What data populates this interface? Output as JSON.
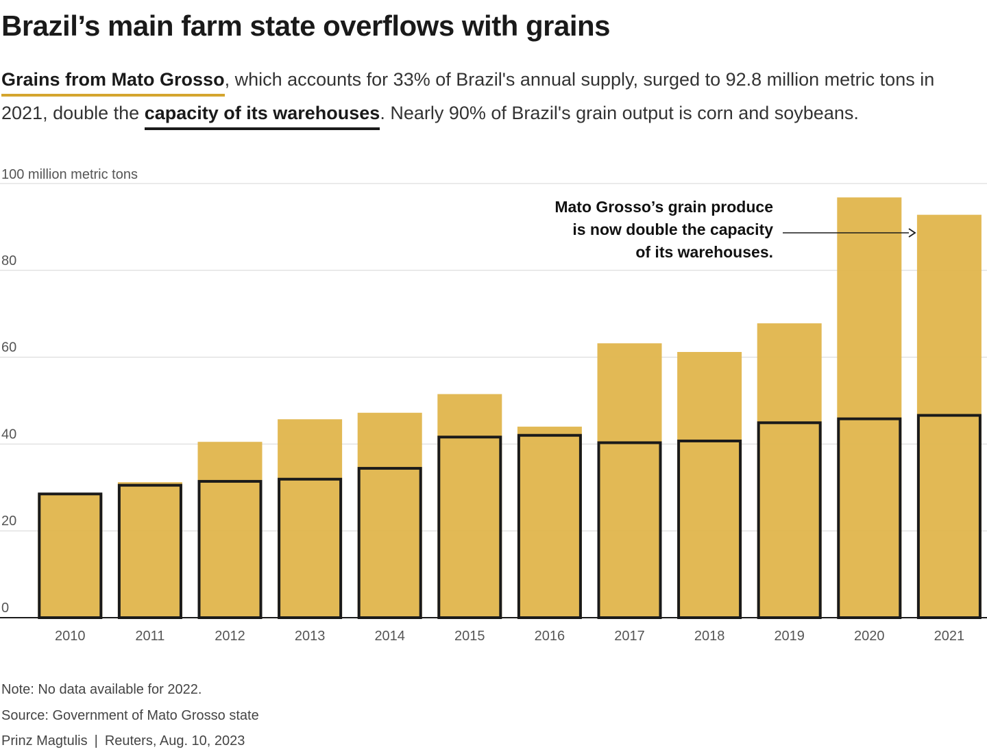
{
  "title": "Brazil’s main farm state overflows with grains",
  "subtitle": {
    "link1": "Grains from Mato Grosso",
    "text1": ", which accounts for 33% of Brazil's annual supply, surged to 92.8 million metric tons in 2021, double the ",
    "link2": "capacity of its warehouses",
    "text2": ". Nearly 90% of Brazil's grain output is corn and soybeans."
  },
  "colors": {
    "production": "#e0b54c",
    "capacity_outline": "#1a1a1a",
    "gridline": "#d6d6d6",
    "highlight_gold": "#d4a52e"
  },
  "chart_data": {
    "type": "bar",
    "title": "Brazil’s main farm state overflows with grains",
    "ylabel": "100 million metric tons",
    "xlabel": "",
    "ylim": [
      0,
      100
    ],
    "yticks": [
      0,
      20,
      40,
      60,
      80
    ],
    "categories": [
      "2010",
      "2011",
      "2012",
      "2013",
      "2014",
      "2015",
      "2016",
      "2017",
      "2018",
      "2019",
      "2020",
      "2021"
    ],
    "series": [
      {
        "name": "Grain production",
        "style": "filled",
        "values": [
          28.5,
          31.2,
          40.5,
          45.7,
          47.2,
          51.5,
          44.0,
          63.2,
          61.2,
          67.8,
          96.8,
          92.8
        ]
      },
      {
        "name": "Warehouse capacity",
        "style": "outline",
        "values": [
          28.5,
          30.5,
          31.4,
          31.9,
          34.4,
          41.6,
          42.0,
          40.3,
          40.7,
          44.9,
          45.8,
          46.6
        ]
      }
    ],
    "annotation": {
      "lines": [
        "Mato Grosso’s grain produce",
        "is now double the capacity",
        "of its warehouses."
      ],
      "points_to": "2021"
    }
  },
  "footer": {
    "note": "Note: No data available for 2022.",
    "source": "Source: Government of Mato Grosso state",
    "author": "Prinz Magtulis",
    "separator": "|",
    "outlet": "Reuters, Aug. 10, 2023"
  }
}
